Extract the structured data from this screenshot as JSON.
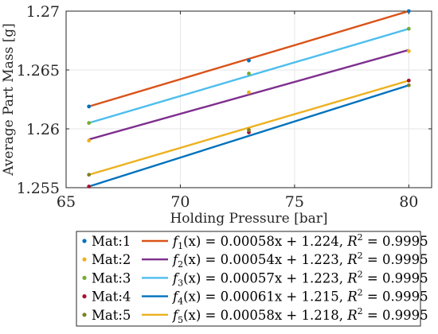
{
  "chart_data": {
    "type": "scatter",
    "xlabel": "Holding Pressure [bar]",
    "ylabel": "Average Part Mass [g]",
    "xlim": [
      65,
      81
    ],
    "ylim": [
      1.255,
      1.27
    ],
    "xticks": [
      "65",
      "70",
      "75",
      "80"
    ],
    "xtick_values": [
      65,
      70,
      75,
      80
    ],
    "yticks": [
      "1.255",
      "1.26",
      "1.265",
      "1.27"
    ],
    "ytick_values": [
      1.255,
      1.26,
      1.265,
      1.27
    ],
    "grid": true,
    "legend_position": "bottom",
    "series": [
      {
        "name": "Mat:1",
        "marker_color": "#0072BD",
        "points": [
          [
            66,
            1.2619
          ],
          [
            73,
            1.2658
          ],
          [
            80,
            1.27
          ]
        ],
        "fit": {
          "label": "f1(x) = 0.00058x + 1.224, R2 = 0.9995",
          "name_sub": "1",
          "expr": "(x) = 0.00058x + 1.224, ",
          "r2_value": "= 0.9995",
          "slope": 0.00058,
          "y_start": 1.2619,
          "y_end": 1.27,
          "color": "#D95319"
        }
      },
      {
        "name": "Mat:2",
        "marker_color": "#EDB120",
        "points": [
          [
            66,
            1.259
          ],
          [
            73,
            1.2631
          ],
          [
            80,
            1.2666
          ]
        ],
        "fit": {
          "label": "f2(x) = 0.00054x + 1.223, R2 = 0.9995",
          "name_sub": "2",
          "expr": "(x) = 0.00054x + 1.223, ",
          "r2_value": "= 0.9995",
          "slope": 0.00054,
          "y_start": 1.2591,
          "y_end": 1.2667,
          "color": "#7E2F8E"
        }
      },
      {
        "name": "Mat:3",
        "marker_color": "#77AC30",
        "points": [
          [
            66,
            1.2605
          ],
          [
            73,
            1.2647
          ],
          [
            80,
            1.2685
          ]
        ],
        "fit": {
          "label": "f3(x) = 0.00057x + 1.223, R2 = 0.9995",
          "name_sub": "3",
          "expr": "(x) = 0.00057x + 1.223, ",
          "r2_value": "= 0.9995",
          "slope": 0.00057,
          "y_start": 1.2605,
          "y_end": 1.2685,
          "color": "#4DBEEE"
        }
      },
      {
        "name": "Mat:4",
        "marker_color": "#A2142F",
        "points": [
          [
            66,
            1.2551
          ],
          [
            73,
            1.2597
          ],
          [
            80,
            1.2641
          ]
        ],
        "fit": {
          "label": "f4(x) = 0.00061x + 1.215, R2 = 0.9995",
          "name_sub": "4",
          "expr": "(x) = 0.00061x + 1.215, ",
          "r2_value": "= 0.9995",
          "slope": 0.00061,
          "y_start": 1.2551,
          "y_end": 1.2637,
          "color": "#0072BD"
        }
      },
      {
        "name": "Mat:5",
        "marker_color": "#808020",
        "points": [
          [
            66,
            1.2561
          ],
          [
            73,
            1.2599
          ],
          [
            80,
            1.2637
          ]
        ],
        "fit": {
          "label": "f5(x) = 0.00058x + 1.218, R2 = 0.9995",
          "name_sub": "5",
          "expr": "(x) = 0.00058x + 1.218, ",
          "r2_value": "= 0.9995",
          "slope": 0.00058,
          "y_start": 1.2561,
          "y_end": 1.2641,
          "color": "#EDB120"
        }
      }
    ]
  }
}
